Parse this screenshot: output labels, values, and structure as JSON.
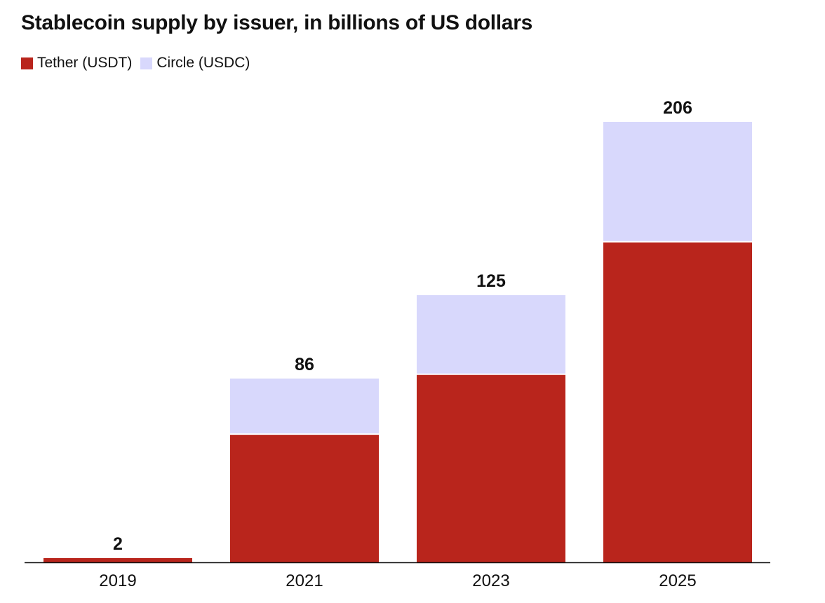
{
  "chart_data": {
    "type": "bar",
    "stacked": true,
    "title": "Stablecoin supply by issuer, in billions of US dollars",
    "categories": [
      "2019",
      "2021",
      "2023",
      "2025"
    ],
    "series": [
      {
        "name": "Tether (USDT)",
        "values": [
          2,
          60,
          88,
          150
        ],
        "color": "#b9251c"
      },
      {
        "name": "Circle (USDC)",
        "values": [
          0,
          26,
          37,
          56
        ],
        "color": "#d8d8fc"
      }
    ],
    "totals": [
      2,
      86,
      125,
      206
    ],
    "total_labels": [
      "2",
      "86",
      "125",
      "206"
    ],
    "xlabel": "",
    "ylabel": "",
    "ylim": [
      0,
      206
    ],
    "grid": false,
    "legend_position": "top-left"
  }
}
